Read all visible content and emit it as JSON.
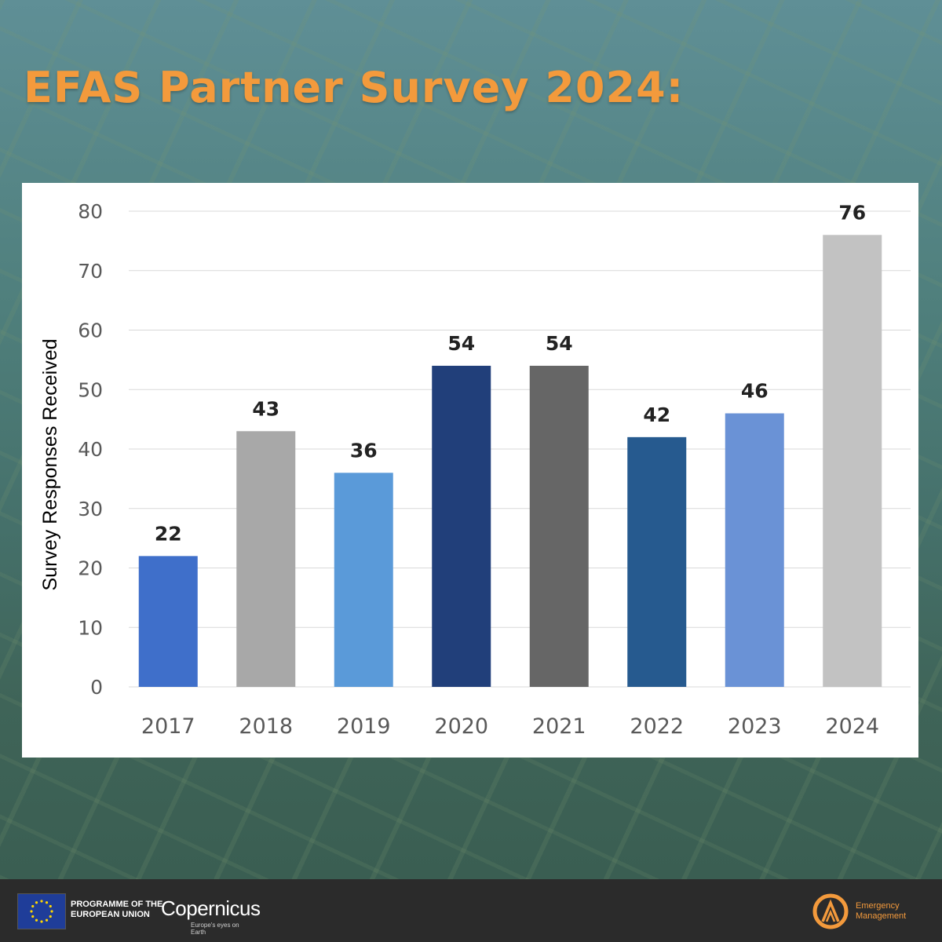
{
  "page": {
    "title": "EFAS Partner Survey 2024:"
  },
  "chart_data": {
    "type": "bar",
    "title": "",
    "xlabel": "",
    "ylabel": "Survey Responses Received",
    "categories": [
      "2017",
      "2018",
      "2019",
      "2020",
      "2021",
      "2022",
      "2023",
      "2024"
    ],
    "values": [
      22,
      43,
      36,
      54,
      54,
      42,
      46,
      76
    ],
    "colors": [
      "#3f6fca",
      "#a8a8a8",
      "#5a9ad9",
      "#213f7a",
      "#666666",
      "#265a8f",
      "#6a92d6",
      "#c2c2c2"
    ],
    "ylim": [
      0,
      80
    ],
    "yticks": [
      0,
      10,
      20,
      30,
      40,
      50,
      60,
      70,
      80
    ],
    "grid": true,
    "data_labels": true,
    "legend": "none"
  },
  "footer": {
    "program_line1": "PROGRAMME OF THE",
    "program_line2": "EUROPEAN UNION",
    "copernicus_name": "Copernicus",
    "copernicus_tagline": "Europe's eyes on Earth",
    "em_line1": "Emergency",
    "em_line2": "Management"
  }
}
